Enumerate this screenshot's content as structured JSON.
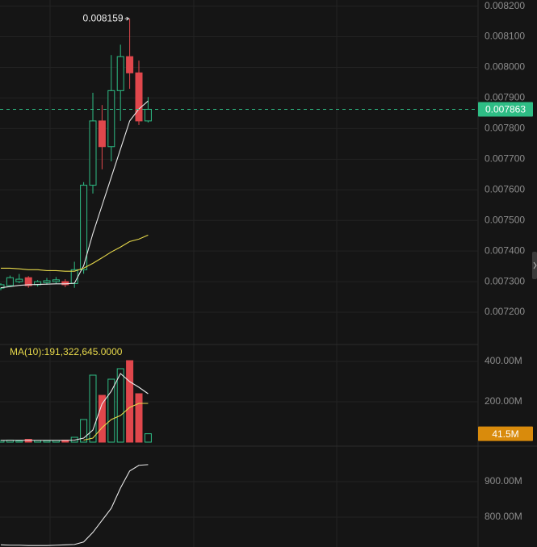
{
  "chart_data": [
    {
      "type": "candlestick",
      "open": [
        0.007279,
        0.007287,
        0.0073,
        0.007313,
        0.00729,
        0.007297,
        0.0073,
        0.0073,
        0.007294,
        0.007339,
        0.007615,
        0.007825,
        0.007741,
        0.007924,
        0.008035,
        0.007982,
        0.007825
      ],
      "high": [
        0.007295,
        0.00732,
        0.007325,
        0.007318,
        0.007305,
        0.007312,
        0.007315,
        0.007308,
        0.007365,
        0.007625,
        0.007917,
        0.007877,
        0.00804,
        0.008074,
        0.008159,
        0.008022,
        0.007903
      ],
      "low": [
        0.007272,
        0.007283,
        0.007295,
        0.00728,
        0.007284,
        0.00729,
        0.007294,
        0.007282,
        0.00728,
        0.007326,
        0.007588,
        0.007667,
        0.007693,
        0.007825,
        0.00793,
        0.007812,
        0.00782
      ],
      "close": [
        0.00729,
        0.007313,
        0.007308,
        0.007287,
        0.0073,
        0.007303,
        0.007306,
        0.00729,
        0.007339,
        0.007615,
        0.007825,
        0.007741,
        0.007924,
        0.008035,
        0.007982,
        0.007825,
        0.007863
      ],
      "up_color": "#2ebd85",
      "down_color": "#e0474c",
      "series": [
        {
          "color": "#e8e8e8",
          "values": [
            0.00728,
            0.007284,
            0.007288,
            0.00729,
            0.007291,
            0.007292,
            0.007293,
            0.007293,
            0.007295,
            0.007352,
            0.007457,
            0.007549,
            0.007641,
            0.007733,
            0.007825,
            0.007864,
            0.00789
          ]
        },
        {
          "color": "#e6d84a",
          "values": [
            0.007344,
            0.007344,
            0.007342,
            0.007339,
            0.007339,
            0.007336,
            0.007336,
            0.007334,
            0.007334,
            0.007344,
            0.00736,
            0.007378,
            0.007397,
            0.007413,
            0.007431,
            0.007439,
            0.007452
          ]
        }
      ],
      "ylim": [
        0.0071,
        0.00822
      ],
      "yticks": [
        {
          "value": 0.0082,
          "label": "0.008200"
        },
        {
          "value": 0.0081,
          "label": "0.008100"
        },
        {
          "value": 0.008,
          "label": "0.008000"
        },
        {
          "value": 0.0079,
          "label": "0.007900"
        },
        {
          "value": 0.0078,
          "label": "0.007800"
        },
        {
          "value": 0.0077,
          "label": "0.007700"
        },
        {
          "value": 0.0076,
          "label": "0.007600"
        },
        {
          "value": 0.0075,
          "label": "0.007500"
        },
        {
          "value": 0.0074,
          "label": "0.007400"
        },
        {
          "value": 0.0073,
          "label": "0.007300"
        },
        {
          "value": 0.0072,
          "label": "0.007200"
        }
      ],
      "last": {
        "value": 0.007863,
        "label": "0.007863"
      },
      "peak": {
        "value": 0.008159,
        "label": "0.008159"
      },
      "last_color": "#2ebd85"
    },
    {
      "type": "bar",
      "title": "MA(10):191,322,645.0000",
      "values": [
        8000000,
        10000000,
        6000000,
        14000000,
        8000000,
        7000000,
        8000000,
        10000000,
        24000000,
        112000000,
        332000000,
        232000000,
        312000000,
        364000000,
        404000000,
        240000000,
        41500000
      ],
      "series": [
        {
          "color": "#e8e8e8",
          "values": [
            9000000,
            9000000,
            9000000,
            9000000,
            9000000,
            9000000,
            9000000,
            9000000,
            10000000,
            20000000,
            60000000,
            190000000,
            252000000,
            340000000,
            300000000,
            272000000,
            240000000
          ]
        },
        {
          "color": "#e6d84a",
          "values": [
            null,
            null,
            null,
            null,
            null,
            null,
            null,
            null,
            null,
            10000000,
            20000000,
            72000000,
            112000000,
            132000000,
            172000000,
            192000000,
            192000000
          ]
        }
      ],
      "ylim": [
        0,
        480000000
      ],
      "yticks": [
        {
          "value": 400000000,
          "label": "400.00M"
        },
        {
          "value": 200000000,
          "label": "200.00M"
        }
      ],
      "last": {
        "value": 41500000,
        "label": "41.5M"
      },
      "last_color": "#d98b0c"
    },
    {
      "type": "line",
      "color": "#e8e8e8",
      "values": [
        722000000,
        721000000,
        721000000,
        720000000,
        720000000,
        720000000,
        721000000,
        722000000,
        723000000,
        730000000,
        757000000,
        791000000,
        825000000,
        882000000,
        930000000,
        946000000,
        948000000
      ],
      "ylim": [
        700000000,
        1000000000
      ],
      "yticks": [
        {
          "value": 900000000,
          "label": "900.00M"
        },
        {
          "value": 800000000,
          "label": "800.00M"
        }
      ]
    }
  ]
}
